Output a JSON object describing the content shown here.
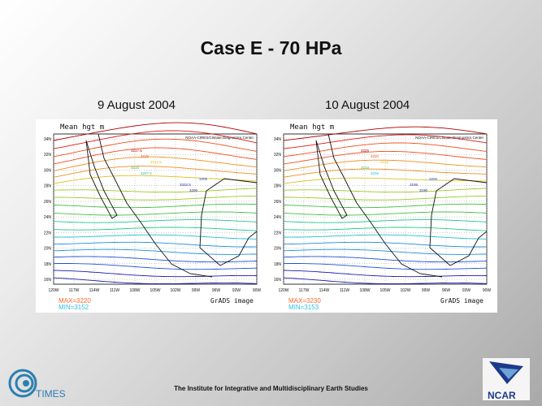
{
  "slide": {
    "title": "Case E - 70 HPa",
    "footer": "The Institute for Integrative and Multidisciplinary Earth Studies"
  },
  "logos": {
    "times": "TIMES",
    "ncar": "NCAR"
  },
  "maps": [
    {
      "date": "9 August 2004",
      "field_label": "Mean hgt m",
      "source": "NOAA-CIRES/Climate Diagnostics Center",
      "lat_labels": [
        "34N",
        "32N",
        "30N",
        "28N",
        "26N",
        "24N",
        "22N",
        "20N",
        "18N",
        "16N"
      ],
      "lon_labels": [
        "120W",
        "117W",
        "114W",
        "111W",
        "108W",
        "105W",
        "102W",
        "99W",
        "96W",
        "93W",
        "90W"
      ],
      "contour_labels": [
        "3217.5",
        "3215",
        "3212.5",
        "3210",
        "3207.5",
        "3205",
        "3202.5",
        "3200"
      ],
      "max": "MAX=3220",
      "min": "MIN=3152",
      "image_label": "GrADS image"
    },
    {
      "date": "10 August 2004",
      "field_label": "Mean hgt m",
      "source": "NOAA-CIRES/Climate Diagnostics Center",
      "lat_labels": [
        "34N",
        "32N",
        "30N",
        "28N",
        "26N",
        "24N",
        "22N",
        "20N",
        "18N",
        "16N"
      ],
      "lon_labels": [
        "120W",
        "117W",
        "114W",
        "111W",
        "108W",
        "105W",
        "102W",
        "99W",
        "96W",
        "93W",
        "90W"
      ],
      "contour_labels": [
        "3225",
        "3220",
        "3215",
        "3210",
        "3205",
        "3200",
        "3195",
        "3190"
      ],
      "max": "MAX=3230",
      "min": "MIN=3153",
      "image_label": "GrADS image"
    }
  ],
  "colors": {
    "contours": [
      "#1b1bb0",
      "#2050d8",
      "#1f8fe0",
      "#20c0d0",
      "#20c890",
      "#40c040",
      "#a0c828",
      "#e0c020",
      "#f09020",
      "#f05020",
      "#e01818",
      "#b00000"
    ],
    "max_label": "#ff6a2a",
    "min_label": "#33bfe8"
  }
}
